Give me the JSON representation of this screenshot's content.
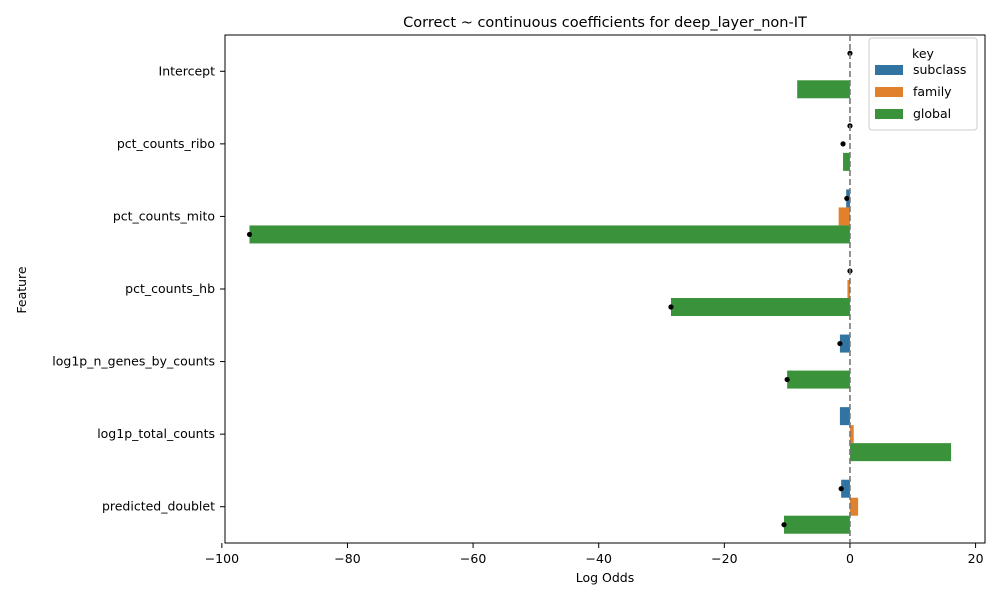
{
  "chart_data": {
    "type": "bar",
    "orientation": "horizontal",
    "title": "Correct ~ continuous coefficients for deep_layer_non-IT",
    "xlabel": "Log Odds",
    "ylabel": "Feature",
    "xlim": [
      -99.5,
      21.5
    ],
    "xticks": [
      -100,
      -80,
      -60,
      -40,
      -20,
      0,
      20
    ],
    "xtick_labels": [
      "−100",
      "−80",
      "−60",
      "−40",
      "−20",
      "0",
      "20"
    ],
    "categories": [
      "Intercept",
      "pct_counts_ribo",
      "pct_counts_mito",
      "pct_counts_hb",
      "log1p_n_genes_by_counts",
      "log1p_total_counts",
      "predicted_doublet"
    ],
    "series": [
      {
        "name": "subclass",
        "color": "#3274a1",
        "values": [
          0,
          0,
          -0.6,
          0,
          -1.6,
          -1.6,
          -1.4
        ]
      },
      {
        "name": "family",
        "color": "#e1812c",
        "values": [
          0,
          0,
          -1.8,
          -0.4,
          0,
          0.6,
          1.3
        ]
      },
      {
        "name": "global",
        "color": "#3a923a",
        "values": [
          -8.4,
          -1.1,
          -95.6,
          -28.5,
          -10.0,
          16.1,
          -10.5
        ]
      }
    ],
    "markers": [
      [
        0,
        null,
        null
      ],
      [
        0,
        -1.1,
        null
      ],
      [
        -0.5,
        null,
        -95.6
      ],
      [
        0,
        null,
        -28.5
      ],
      [
        -1.6,
        null,
        -10.0
      ],
      [
        null,
        null,
        null
      ],
      [
        -1.4,
        null,
        -10.5
      ]
    ],
    "reference_line": 0,
    "legend": {
      "title": "key",
      "position": "top-right",
      "entries": [
        "subclass",
        "family",
        "global"
      ]
    }
  }
}
